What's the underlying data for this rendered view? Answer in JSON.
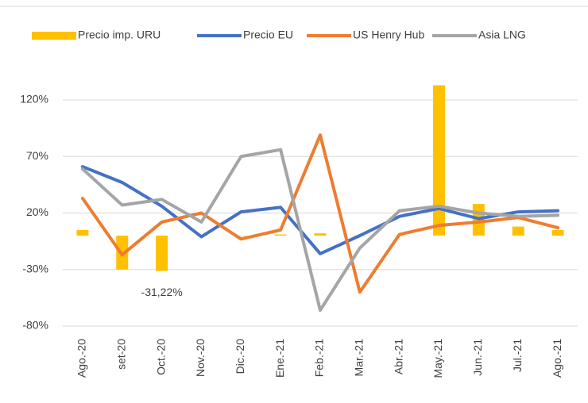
{
  "chart_data": {
    "type": "bar_line",
    "categories": [
      "Ago.-20",
      "set-20",
      "Oct.-20",
      "Nov.-20",
      "Dic.-20",
      "Ene.-21",
      "Feb.-21",
      "Mar.-21",
      "Abr.-21",
      "May.-21",
      "Jun.-21",
      "Jul.-21",
      "Ago.-21"
    ],
    "series": [
      {
        "name": "Precio imp. URU",
        "type": "bar",
        "color": "#ffc000",
        "values": [
          5,
          -30,
          -31.22,
          0,
          0,
          1,
          2,
          0,
          0,
          133,
          28,
          8,
          5
        ],
        "value_labels": [
          null,
          null,
          "-31,22%",
          null,
          null,
          null,
          null,
          null,
          null,
          null,
          null,
          null,
          null
        ]
      },
      {
        "name": "Precio EU",
        "type": "line",
        "color": "#4472c4",
        "values": [
          61,
          47,
          26,
          -1,
          21,
          25,
          -16,
          0,
          17,
          24,
          15,
          21,
          22
        ]
      },
      {
        "name": "US Henry Hub",
        "type": "line",
        "color": "#ed7d31",
        "values": [
          33,
          -17,
          12,
          20,
          -3,
          5,
          89,
          -50,
          1,
          9,
          12,
          16,
          7
        ]
      },
      {
        "name": "Asia LNG",
        "type": "line",
        "color": "#a5a5a5",
        "values": [
          59,
          27,
          32,
          12,
          70,
          76,
          -66,
          -11,
          22,
          26,
          20,
          17,
          18
        ]
      }
    ],
    "ylim": [
      -80,
      140
    ],
    "yticks": [
      {
        "value": -80,
        "label": "-80%"
      },
      {
        "value": -30,
        "label": "-30%"
      },
      {
        "value": 20,
        "label": "20%"
      },
      {
        "value": 70,
        "label": "70%"
      },
      {
        "value": 120,
        "label": "120%"
      }
    ],
    "grid": true,
    "legend": "top"
  }
}
